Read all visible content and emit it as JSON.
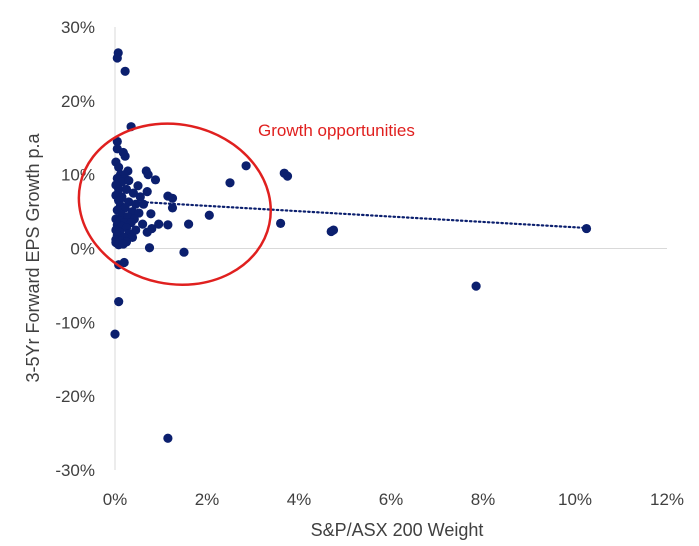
{
  "chart_data": {
    "type": "scatter",
    "title": "",
    "xlabel": "S&P/ASX 200 Weight",
    "ylabel": "3-5Yr Forward EPS Growth p.a",
    "xlim": [
      0,
      12
    ],
    "ylim": [
      -30,
      30
    ],
    "x_ticks": [
      "0%",
      "2%",
      "4%",
      "6%",
      "8%",
      "10%",
      "12%"
    ],
    "y_ticks": [
      "-30%",
      "-20%",
      "-10%",
      "0%",
      "10%",
      "20%",
      "30%"
    ],
    "grid": false,
    "legend": "none",
    "marker_color": "#0b1f6e",
    "annotation": {
      "text": "Growth opportunities",
      "color": "#e0201f",
      "ellipse_center": [
        1.3,
        6
      ],
      "ellipse_radii": [
        2.1,
        10.8
      ]
    },
    "trendline": {
      "style": "dotted",
      "color": "#0b1f6e",
      "x": [
        0,
        10.2
      ],
      "y": [
        6.5,
        2.8
      ]
    },
    "points": [
      {
        "x": 0.07,
        "y": 26.5
      },
      {
        "x": 0.05,
        "y": 25.8
      },
      {
        "x": 0.22,
        "y": 24.0
      },
      {
        "x": 0.35,
        "y": 16.5
      },
      {
        "x": 0.05,
        "y": 14.5
      },
      {
        "x": 0.05,
        "y": 13.5
      },
      {
        "x": 0.18,
        "y": 13.0
      },
      {
        "x": 0.22,
        "y": 12.5
      },
      {
        "x": 0.02,
        "y": 11.7
      },
      {
        "x": 0.08,
        "y": 11.0
      },
      {
        "x": 0.28,
        "y": 10.5
      },
      {
        "x": 0.68,
        "y": 10.5
      },
      {
        "x": 0.72,
        "y": 10.0
      },
      {
        "x": 0.12,
        "y": 10.0
      },
      {
        "x": 0.2,
        "y": 10.0
      },
      {
        "x": 0.05,
        "y": 9.5
      },
      {
        "x": 0.88,
        "y": 9.3
      },
      {
        "x": 0.15,
        "y": 9.0
      },
      {
        "x": 0.3,
        "y": 9.2
      },
      {
        "x": 0.02,
        "y": 8.6
      },
      {
        "x": 0.5,
        "y": 8.5
      },
      {
        "x": 0.08,
        "y": 8.0
      },
      {
        "x": 0.25,
        "y": 8.0
      },
      {
        "x": 0.7,
        "y": 7.7
      },
      {
        "x": 0.4,
        "y": 7.5
      },
      {
        "x": 0.02,
        "y": 7.2
      },
      {
        "x": 0.15,
        "y": 7.0
      },
      {
        "x": 0.55,
        "y": 7.0
      },
      {
        "x": 1.15,
        "y": 7.1
      },
      {
        "x": 1.25,
        "y": 6.8
      },
      {
        "x": 0.08,
        "y": 6.5
      },
      {
        "x": 0.3,
        "y": 6.3
      },
      {
        "x": 0.45,
        "y": 6.0
      },
      {
        "x": 0.62,
        "y": 6.0
      },
      {
        "x": 0.12,
        "y": 5.8
      },
      {
        "x": 0.22,
        "y": 5.5
      },
      {
        "x": 1.25,
        "y": 5.5
      },
      {
        "x": 0.05,
        "y": 5.2
      },
      {
        "x": 0.38,
        "y": 5.0
      },
      {
        "x": 0.52,
        "y": 4.8
      },
      {
        "x": 0.78,
        "y": 4.7
      },
      {
        "x": 0.15,
        "y": 4.5
      },
      {
        "x": 0.28,
        "y": 4.3
      },
      {
        "x": 0.02,
        "y": 4.0
      },
      {
        "x": 0.42,
        "y": 4.0
      },
      {
        "x": 0.1,
        "y": 3.8
      },
      {
        "x": 0.2,
        "y": 3.5
      },
      {
        "x": 0.35,
        "y": 3.5
      },
      {
        "x": 0.05,
        "y": 3.2
      },
      {
        "x": 0.6,
        "y": 3.3
      },
      {
        "x": 0.95,
        "y": 3.3
      },
      {
        "x": 1.15,
        "y": 3.2
      },
      {
        "x": 0.15,
        "y": 3.0
      },
      {
        "x": 0.25,
        "y": 2.8
      },
      {
        "x": 0.02,
        "y": 2.5
      },
      {
        "x": 0.45,
        "y": 2.5
      },
      {
        "x": 0.8,
        "y": 2.7
      },
      {
        "x": 0.1,
        "y": 2.2
      },
      {
        "x": 0.3,
        "y": 2.0
      },
      {
        "x": 0.7,
        "y": 2.2
      },
      {
        "x": 0.05,
        "y": 1.8
      },
      {
        "x": 0.2,
        "y": 1.5
      },
      {
        "x": 0.38,
        "y": 1.5
      },
      {
        "x": 0.02,
        "y": 1.2
      },
      {
        "x": 0.12,
        "y": 1.0
      },
      {
        "x": 0.25,
        "y": 0.9
      },
      {
        "x": 0.02,
        "y": 0.8
      },
      {
        "x": 0.08,
        "y": 0.5
      },
      {
        "x": 0.18,
        "y": 0.6
      },
      {
        "x": 0.75,
        "y": 0.1
      },
      {
        "x": 1.5,
        "y": -0.5
      },
      {
        "x": 0.08,
        "y": -2.2
      },
      {
        "x": 0.2,
        "y": -1.9
      },
      {
        "x": 0.08,
        "y": -7.2
      },
      {
        "x": 0.0,
        "y": -11.6
      },
      {
        "x": 1.15,
        "y": -25.7
      },
      {
        "x": 2.5,
        "y": 8.9
      },
      {
        "x": 2.85,
        "y": 11.2
      },
      {
        "x": 2.05,
        "y": 4.5
      },
      {
        "x": 1.6,
        "y": 3.3
      },
      {
        "x": 3.68,
        "y": 10.2
      },
      {
        "x": 3.75,
        "y": 9.8
      },
      {
        "x": 3.6,
        "y": 3.4
      },
      {
        "x": 4.7,
        "y": 2.3
      },
      {
        "x": 4.75,
        "y": 2.5
      },
      {
        "x": 7.85,
        "y": -5.1
      },
      {
        "x": 10.25,
        "y": 2.7
      }
    ]
  }
}
